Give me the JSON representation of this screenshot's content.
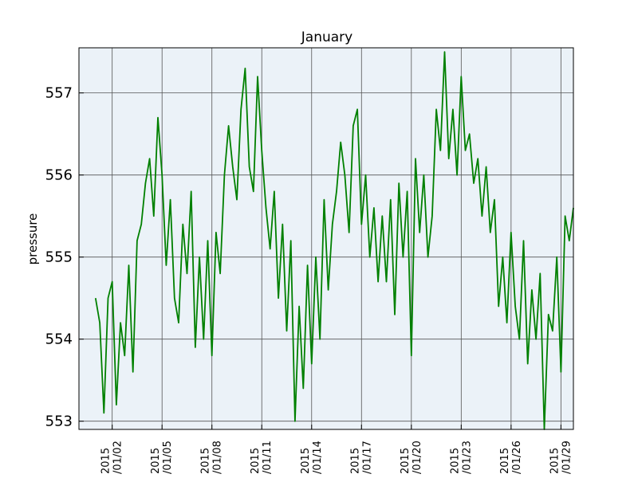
{
  "chart_data": {
    "type": "line",
    "title": "January",
    "xlabel": "",
    "ylabel": "pressure",
    "xlim": [
      "2014-12-31",
      "2015-01-29 18:00"
    ],
    "ylim": [
      552.9,
      557.55
    ],
    "grid": true,
    "background": "#ebf2f8",
    "colors": {
      "series": "#008000",
      "grid": "#555555",
      "frame": "#000000"
    },
    "y_ticks": [
      553,
      554,
      555,
      556,
      557
    ],
    "x_ticks": [
      {
        "date": "2015-01-02",
        "label_top": "2015",
        "label_bottom": "/01/02"
      },
      {
        "date": "2015-01-05",
        "label_top": "2015",
        "label_bottom": "/01/05"
      },
      {
        "date": "2015-01-08",
        "label_top": "2015",
        "label_bottom": "/01/08"
      },
      {
        "date": "2015-01-11",
        "label_top": "2015",
        "label_bottom": "/01/11"
      },
      {
        "date": "2015-01-14",
        "label_top": "2015",
        "label_bottom": "/01/14"
      },
      {
        "date": "2015-01-17",
        "label_top": "2015",
        "label_bottom": "/01/17"
      },
      {
        "date": "2015-01-20",
        "label_top": "2015",
        "label_bottom": "/01/20"
      },
      {
        "date": "2015-01-23",
        "label_top": "2015",
        "label_bottom": "/01/23"
      },
      {
        "date": "2015-01-26",
        "label_top": "2015",
        "label_bottom": "/01/26"
      },
      {
        "date": "2015-01-29",
        "label_top": "2015",
        "label_bottom": "/01/29"
      }
    ],
    "series": [
      {
        "x": [
          "2015-01-01 00:00",
          "2015-01-01 06:00",
          "2015-01-01 12:00",
          "2015-01-01 18:00",
          "2015-01-02 00:00",
          "2015-01-02 06:00",
          "2015-01-02 12:00",
          "2015-01-02 18:00",
          "2015-01-03 00:00",
          "2015-01-03 06:00",
          "2015-01-03 12:00",
          "2015-01-03 18:00",
          "2015-01-04 00:00",
          "2015-01-04 06:00",
          "2015-01-04 12:00",
          "2015-01-04 18:00",
          "2015-01-05 00:00",
          "2015-01-05 06:00",
          "2015-01-05 12:00",
          "2015-01-05 18:00",
          "2015-01-06 00:00",
          "2015-01-06 06:00",
          "2015-01-06 12:00",
          "2015-01-06 18:00",
          "2015-01-07 00:00",
          "2015-01-07 06:00",
          "2015-01-07 12:00",
          "2015-01-07 18:00",
          "2015-01-08 00:00",
          "2015-01-08 06:00",
          "2015-01-08 12:00",
          "2015-01-08 18:00",
          "2015-01-09 00:00",
          "2015-01-09 06:00",
          "2015-01-09 12:00",
          "2015-01-09 18:00",
          "2015-01-10 00:00",
          "2015-01-10 06:00",
          "2015-01-10 12:00",
          "2015-01-10 18:00",
          "2015-01-11 00:00",
          "2015-01-11 06:00",
          "2015-01-11 12:00",
          "2015-01-11 18:00",
          "2015-01-12 00:00",
          "2015-01-12 06:00",
          "2015-01-12 12:00",
          "2015-01-12 18:00",
          "2015-01-13 00:00",
          "2015-01-13 06:00",
          "2015-01-13 12:00",
          "2015-01-13 18:00",
          "2015-01-14 00:00",
          "2015-01-14 06:00",
          "2015-01-14 12:00",
          "2015-01-14 18:00",
          "2015-01-15 00:00",
          "2015-01-15 06:00",
          "2015-01-15 12:00",
          "2015-01-15 18:00",
          "2015-01-16 00:00",
          "2015-01-16 06:00",
          "2015-01-16 12:00",
          "2015-01-16 18:00",
          "2015-01-17 00:00",
          "2015-01-17 06:00",
          "2015-01-17 12:00",
          "2015-01-17 18:00",
          "2015-01-18 00:00",
          "2015-01-18 06:00",
          "2015-01-18 12:00",
          "2015-01-18 18:00",
          "2015-01-19 00:00",
          "2015-01-19 06:00",
          "2015-01-19 12:00",
          "2015-01-19 18:00",
          "2015-01-20 00:00",
          "2015-01-20 06:00",
          "2015-01-20 12:00",
          "2015-01-20 18:00",
          "2015-01-21 00:00",
          "2015-01-21 06:00",
          "2015-01-21 12:00",
          "2015-01-21 18:00",
          "2015-01-22 00:00",
          "2015-01-22 06:00",
          "2015-01-22 12:00",
          "2015-01-22 18:00",
          "2015-01-23 00:00",
          "2015-01-23 06:00",
          "2015-01-23 12:00",
          "2015-01-23 18:00",
          "2015-01-24 00:00",
          "2015-01-24 06:00",
          "2015-01-24 12:00",
          "2015-01-24 18:00",
          "2015-01-25 00:00",
          "2015-01-25 06:00",
          "2015-01-25 12:00",
          "2015-01-25 18:00",
          "2015-01-26 00:00",
          "2015-01-26 06:00",
          "2015-01-26 12:00",
          "2015-01-26 18:00",
          "2015-01-27 00:00",
          "2015-01-27 06:00",
          "2015-01-27 12:00",
          "2015-01-27 18:00",
          "2015-01-28 00:00",
          "2015-01-28 06:00",
          "2015-01-28 12:00",
          "2015-01-28 18:00",
          "2015-01-29 00:00",
          "2015-01-29 06:00",
          "2015-01-29 12:00",
          "2015-01-29 18:00"
        ],
        "y": [
          554.5,
          554.2,
          553.1,
          554.5,
          554.7,
          553.2,
          554.2,
          553.8,
          554.9,
          553.6,
          555.2,
          555.4,
          555.9,
          556.2,
          555.5,
          556.7,
          556.0,
          554.9,
          555.7,
          554.5,
          554.2,
          555.4,
          554.8,
          555.8,
          553.9,
          555.0,
          554.0,
          555.2,
          553.8,
          555.3,
          554.8,
          556.0,
          556.6,
          556.1,
          555.7,
          556.8,
          557.3,
          556.1,
          555.8,
          557.2,
          556.3,
          555.6,
          555.1,
          555.8,
          554.5,
          555.4,
          554.1,
          555.2,
          553.0,
          554.4,
          553.4,
          554.9,
          553.7,
          555.0,
          554.0,
          555.7,
          554.6,
          555.4,
          555.8,
          556.4,
          556.0,
          555.3,
          556.6,
          556.8,
          555.4,
          556.0,
          555.0,
          555.6,
          554.7,
          555.5,
          554.7,
          555.7,
          554.3,
          555.9,
          555.0,
          555.8,
          553.8,
          556.2,
          555.3,
          556.0,
          555.0,
          555.5,
          556.8,
          556.3,
          557.5,
          556.2,
          556.8,
          556.0,
          557.2,
          556.3,
          556.5,
          555.9,
          556.2,
          555.5,
          556.1,
          555.3,
          555.7,
          554.4,
          555.0,
          554.2,
          555.3,
          554.4,
          554.0,
          555.2,
          553.7,
          554.6,
          554.0,
          554.8,
          552.9,
          554.3,
          554.1,
          555.0,
          553.6,
          555.5,
          555.2,
          555.6
        ]
      }
    ]
  }
}
